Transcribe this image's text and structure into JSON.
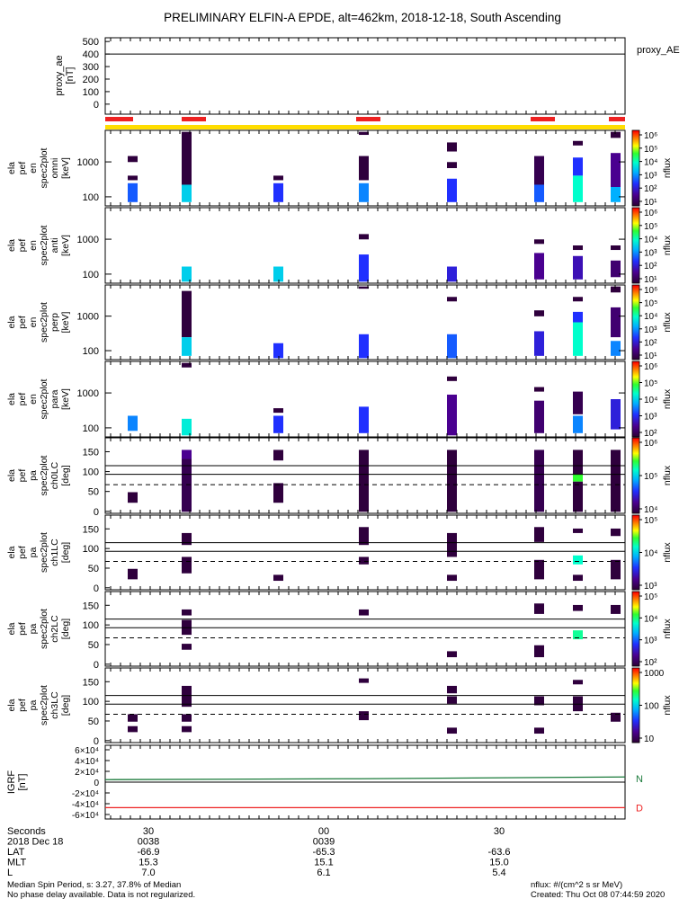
{
  "title": "PRELIMINARY ELFIN-A EPDE, alt=462km, 2018-12-18, South Ascending",
  "proxy_label": "proxy_AE",
  "panels": [
    {
      "ylabel": [
        "ela",
        "pef",
        "en",
        "spec2plot",
        "omni",
        "[keV]"
      ],
      "cb_label": "nflux"
    },
    {
      "ylabel": [
        "ela",
        "pef",
        "en",
        "spec2plot",
        "anti",
        "[keV]"
      ],
      "cb_label": "nflux"
    },
    {
      "ylabel": [
        "ela",
        "pef",
        "en",
        "spec2plot",
        "perp",
        "[keV]"
      ],
      "cb_label": "nflux"
    },
    {
      "ylabel": [
        "ela",
        "pef",
        "en",
        "spec2plot",
        "para",
        "[keV]"
      ],
      "cb_label": "nflux"
    },
    {
      "ylabel": [
        "ela",
        "pef",
        "pa",
        "spec2plot",
        "ch0LC",
        "[deg]"
      ],
      "cb_label": "nflux"
    },
    {
      "ylabel": [
        "ela",
        "pef",
        "pa",
        "spec2plot",
        "ch1LC",
        "[deg]"
      ],
      "cb_label": "nflux"
    },
    {
      "ylabel": [
        "ela",
        "pef",
        "pa",
        "spec2plot",
        "ch2LC",
        "[deg]"
      ],
      "cb_label": "nflux"
    },
    {
      "ylabel": [
        "ela",
        "pef",
        "pa",
        "spec2plot",
        "ch3LC",
        "[deg]"
      ],
      "cb_label": "nflux"
    }
  ],
  "igrf_ylabel": [
    "IGRF",
    "[nT]"
  ],
  "igrf_components": [
    "N",
    "D"
  ],
  "bottom_rows": [
    {
      "label": "Seconds",
      "values": [
        "30",
        "00",
        "30"
      ]
    },
    {
      "label": "2018 Dec 18",
      "values": [
        "0038",
        "0039",
        ""
      ]
    },
    {
      "label": "LAT",
      "values": [
        "-66.9",
        "-65.3",
        "-63.6"
      ]
    },
    {
      "label": "MLT",
      "values": [
        "15.3",
        "15.1",
        "15.0"
      ]
    },
    {
      "label": "L",
      "values": [
        "7.0",
        "6.1",
        "5.4"
      ]
    }
  ],
  "footer": {
    "left1": "Median Spin Period, s: 3.27, 37.8% of Median",
    "left2": "No phase delay available. Data is not regularized.",
    "right1": "nflux: #/(cm^2 s sr MeV)",
    "right2": "Created: Thu Oct 08 07:44:59 2020"
  },
  "chart_data": {
    "type": "heatmap",
    "x_tick_labels": [
      "30",
      "00",
      "30"
    ],
    "proxy_ae": {
      "ylabel": [
        "proxy_ae",
        "[nT]"
      ],
      "yticks": [
        0,
        100,
        200,
        300,
        400,
        500
      ],
      "ylim": [
        -80,
        530
      ],
      "value": 400
    },
    "energy_yticks": [
      100,
      1000
    ],
    "pa_yticks": [
      0,
      50,
      100,
      150
    ],
    "pa_reference_lines": {
      "solid": [
        115,
        93
      ],
      "dashed": 67
    },
    "igrf": {
      "yticks": [
        "6×10⁴",
        "4×10⁴",
        "2×10⁴",
        "0",
        "-2×10⁴",
        "-4×10⁴",
        "-6×10⁴"
      ],
      "ylim": [
        -65000,
        65000
      ],
      "N": 6000,
      "D": -45000
    },
    "colorbars": [
      [
        "10⁶",
        "10⁵",
        "10⁴",
        "10³",
        "10²",
        "10¹"
      ],
      [
        "10⁶",
        "10⁵",
        "10⁴",
        "10³",
        "10²",
        "10¹"
      ],
      [
        "10⁶",
        "10⁵",
        "10⁴",
        "10³",
        "10²",
        "10¹"
      ],
      [
        "10⁶",
        "10⁵",
        "10⁴",
        "10³",
        "10²"
      ],
      [
        "10⁶",
        "10⁵",
        "10⁴"
      ],
      [
        "10⁵",
        "10⁴",
        "10³"
      ],
      [
        "10⁵",
        "10⁴",
        "10³",
        "10²"
      ],
      [
        "1000",
        "100",
        "10"
      ]
    ]
  }
}
